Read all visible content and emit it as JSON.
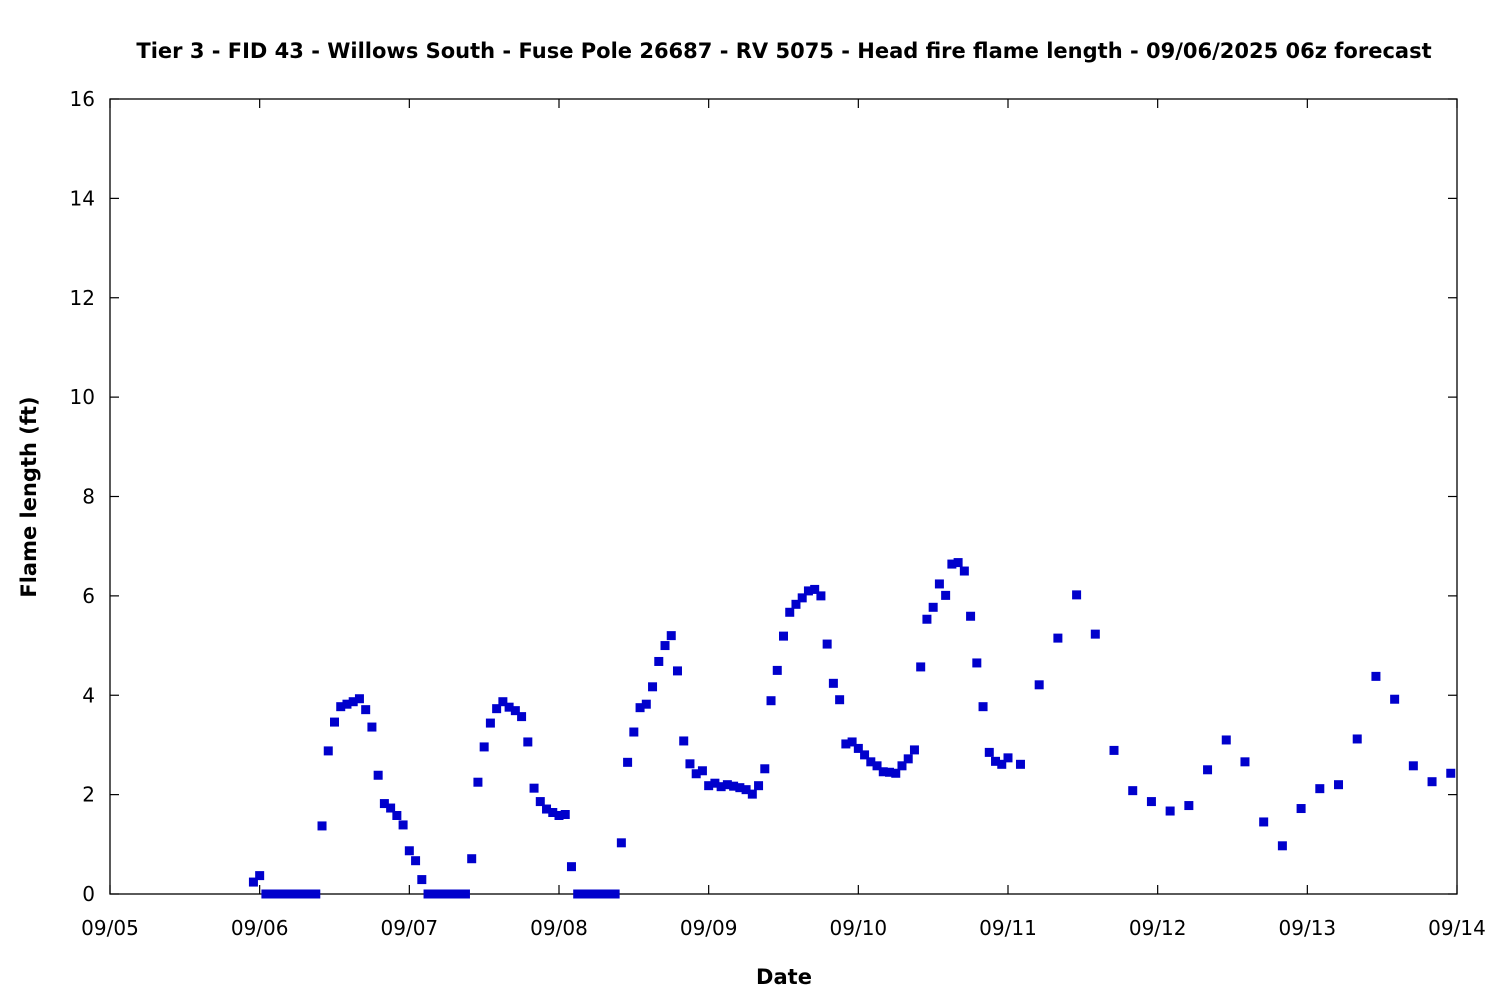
{
  "chart_data": {
    "type": "scatter",
    "title": "Tier 3 - FID 43 - Willows South - Fuse Pole 26687 - RV 5075 - Head fire flame length - 09/06/2025 06z forecast",
    "xlabel": "Date",
    "ylabel": "Flame length (ft)",
    "xlim": [
      "09/05 00:00",
      "09/14 00:00"
    ],
    "ylim": [
      0,
      16
    ],
    "x_ticks": [
      "09/05",
      "09/06",
      "09/07",
      "09/08",
      "09/09",
      "09/10",
      "09/11",
      "09/12",
      "09/13",
      "09/14"
    ],
    "y_ticks": [
      "0",
      "2",
      "4",
      "6",
      "8",
      "10",
      "12",
      "14",
      "16"
    ],
    "grid": false,
    "legend": "none",
    "marker": "square",
    "color": "#0000cc",
    "series": [
      {
        "points": [
          [
            "09/05 23:00",
            0.24
          ],
          [
            "09/06 00:00",
            0.37
          ],
          [
            "09/06 01:00",
            0.0
          ],
          [
            "09/06 02:00",
            0.0
          ],
          [
            "09/06 03:00",
            0.0
          ],
          [
            "09/06 04:00",
            0.0
          ],
          [
            "09/06 05:00",
            0.0
          ],
          [
            "09/06 06:00",
            0.0
          ],
          [
            "09/06 07:00",
            0.0
          ],
          [
            "09/06 08:00",
            0.0
          ],
          [
            "09/06 09:00",
            0.0
          ],
          [
            "09/06 10:00",
            1.37
          ],
          [
            "09/06 11:00",
            2.88
          ],
          [
            "09/06 12:00",
            3.46
          ],
          [
            "09/06 13:00",
            3.77
          ],
          [
            "09/06 14:00",
            3.82
          ],
          [
            "09/06 15:00",
            3.87
          ],
          [
            "09/06 16:00",
            3.93
          ],
          [
            "09/06 17:00",
            3.71
          ],
          [
            "09/06 18:00",
            3.36
          ],
          [
            "09/06 19:00",
            2.39
          ],
          [
            "09/06 20:00",
            1.82
          ],
          [
            "09/06 21:00",
            1.73
          ],
          [
            "09/06 22:00",
            1.58
          ],
          [
            "09/06 23:00",
            1.39
          ],
          [
            "09/07 00:00",
            0.87
          ],
          [
            "09/07 01:00",
            0.67
          ],
          [
            "09/07 02:00",
            0.29
          ],
          [
            "09/07 03:00",
            0.0
          ],
          [
            "09/07 04:00",
            0.0
          ],
          [
            "09/07 05:00",
            0.0
          ],
          [
            "09/07 06:00",
            0.0
          ],
          [
            "09/07 07:00",
            0.0
          ],
          [
            "09/07 08:00",
            0.0
          ],
          [
            "09/07 09:00",
            0.0
          ],
          [
            "09/07 10:00",
            0.71
          ],
          [
            "09/07 11:00",
            2.25
          ],
          [
            "09/07 12:00",
            2.96
          ],
          [
            "09/07 13:00",
            3.44
          ],
          [
            "09/07 14:00",
            3.73
          ],
          [
            "09/07 15:00",
            3.87
          ],
          [
            "09/07 16:00",
            3.76
          ],
          [
            "09/07 17:00",
            3.69
          ],
          [
            "09/07 18:00",
            3.57
          ],
          [
            "09/07 19:00",
            3.06
          ],
          [
            "09/07 20:00",
            2.13
          ],
          [
            "09/07 21:00",
            1.86
          ],
          [
            "09/07 22:00",
            1.71
          ],
          [
            "09/07 23:00",
            1.64
          ],
          [
            "09/08 00:00",
            1.58
          ],
          [
            "09/08 01:00",
            1.6
          ],
          [
            "09/08 02:00",
            0.55
          ],
          [
            "09/08 03:00",
            0.0
          ],
          [
            "09/08 04:00",
            0.0
          ],
          [
            "09/08 05:00",
            0.0
          ],
          [
            "09/08 06:00",
            0.0
          ],
          [
            "09/08 07:00",
            0.0
          ],
          [
            "09/08 08:00",
            0.0
          ],
          [
            "09/08 09:00",
            0.0
          ],
          [
            "09/08 10:00",
            1.03
          ],
          [
            "09/08 11:00",
            2.65
          ],
          [
            "09/08 12:00",
            3.26
          ],
          [
            "09/08 13:00",
            3.75
          ],
          [
            "09/08 14:00",
            3.82
          ],
          [
            "09/08 15:00",
            4.17
          ],
          [
            "09/08 16:00",
            4.68
          ],
          [
            "09/08 17:00",
            5.0
          ],
          [
            "09/08 18:00",
            5.2
          ],
          [
            "09/08 19:00",
            4.49
          ],
          [
            "09/08 20:00",
            3.08
          ],
          [
            "09/08 21:00",
            2.62
          ],
          [
            "09/08 22:00",
            2.42
          ],
          [
            "09/08 23:00",
            2.48
          ],
          [
            "09/09 00:00",
            2.18
          ],
          [
            "09/09 01:00",
            2.23
          ],
          [
            "09/09 02:00",
            2.16
          ],
          [
            "09/09 03:00",
            2.2
          ],
          [
            "09/09 04:00",
            2.17
          ],
          [
            "09/09 05:00",
            2.14
          ],
          [
            "09/09 06:00",
            2.1
          ],
          [
            "09/09 07:00",
            2.01
          ],
          [
            "09/09 08:00",
            2.18
          ],
          [
            "09/09 09:00",
            2.52
          ],
          [
            "09/09 10:00",
            3.89
          ],
          [
            "09/09 11:00",
            4.5
          ],
          [
            "09/09 12:00",
            5.19
          ],
          [
            "09/09 13:00",
            5.67
          ],
          [
            "09/09 14:00",
            5.83
          ],
          [
            "09/09 15:00",
            5.96
          ],
          [
            "09/09 16:00",
            6.1
          ],
          [
            "09/09 17:00",
            6.13
          ],
          [
            "09/09 18:00",
            6.0
          ],
          [
            "09/09 19:00",
            5.03
          ],
          [
            "09/09 20:00",
            4.24
          ],
          [
            "09/09 21:00",
            3.91
          ],
          [
            "09/09 22:00",
            3.02
          ],
          [
            "09/09 23:00",
            3.06
          ],
          [
            "09/10 00:00",
            2.93
          ],
          [
            "09/10 01:00",
            2.8
          ],
          [
            "09/10 02:00",
            2.66
          ],
          [
            "09/10 03:00",
            2.58
          ],
          [
            "09/10 04:00",
            2.46
          ],
          [
            "09/10 05:00",
            2.45
          ],
          [
            "09/10 06:00",
            2.43
          ],
          [
            "09/10 07:00",
            2.58
          ],
          [
            "09/10 08:00",
            2.72
          ],
          [
            "09/10 09:00",
            2.9
          ],
          [
            "09/10 10:00",
            4.57
          ],
          [
            "09/10 11:00",
            5.53
          ],
          [
            "09/10 12:00",
            5.77
          ],
          [
            "09/10 13:00",
            6.24
          ],
          [
            "09/10 14:00",
            6.01
          ],
          [
            "09/10 15:00",
            6.64
          ],
          [
            "09/10 16:00",
            6.67
          ],
          [
            "09/10 17:00",
            6.5
          ],
          [
            "09/10 18:00",
            5.59
          ],
          [
            "09/10 19:00",
            4.65
          ],
          [
            "09/10 20:00",
            3.77
          ],
          [
            "09/10 21:00",
            2.85
          ],
          [
            "09/10 22:00",
            2.67
          ],
          [
            "09/10 23:00",
            2.61
          ],
          [
            "09/11 00:00",
            2.74
          ],
          [
            "09/11 02:00",
            2.61
          ],
          [
            "09/11 05:00",
            4.21
          ],
          [
            "09/11 08:00",
            5.15
          ],
          [
            "09/11 11:00",
            6.02
          ],
          [
            "09/11 14:00",
            5.23
          ],
          [
            "09/11 17:00",
            2.89
          ],
          [
            "09/11 20:00",
            2.08
          ],
          [
            "09/11 23:00",
            1.86
          ],
          [
            "09/12 02:00",
            1.67
          ],
          [
            "09/12 05:00",
            1.78
          ],
          [
            "09/12 08:00",
            2.5
          ],
          [
            "09/12 11:00",
            3.1
          ],
          [
            "09/12 14:00",
            2.66
          ],
          [
            "09/12 17:00",
            1.45
          ],
          [
            "09/12 20:00",
            0.97
          ],
          [
            "09/12 23:00",
            1.72
          ],
          [
            "09/13 02:00",
            2.12
          ],
          [
            "09/13 05:00",
            2.2
          ],
          [
            "09/13 08:00",
            3.12
          ],
          [
            "09/13 11:00",
            4.38
          ],
          [
            "09/13 14:00",
            3.92
          ],
          [
            "09/13 17:00",
            2.58
          ],
          [
            "09/13 20:00",
            2.26
          ],
          [
            "09/13 23:00",
            2.43
          ]
        ]
      }
    ]
  }
}
